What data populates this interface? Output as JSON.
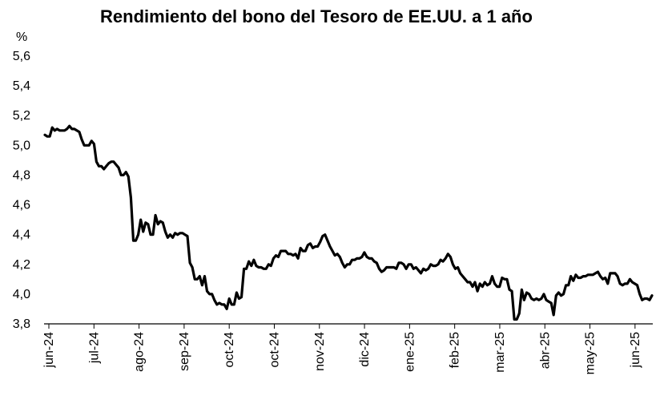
{
  "chart_data": {
    "type": "line",
    "title": "Rendimiento del bono del Tesoro de EE.UU. a 1 año",
    "y_unit_label": "%",
    "xlabel": "",
    "ylabel": "%",
    "ylim": [
      3.8,
      5.6
    ],
    "y_ticks": [
      3.8,
      4.0,
      4.2,
      4.4,
      4.6,
      4.8,
      5.0,
      5.2,
      5.4,
      5.6
    ],
    "y_tick_labels": [
      "3,8",
      "4,0",
      "4,2",
      "4,4",
      "4,6",
      "4,8",
      "5,0",
      "5,2",
      "5,4",
      "5,6"
    ],
    "x_tick_labels": [
      "jun-24",
      "jul-24",
      "ago-24",
      "sep-24",
      "oct-24",
      "oct-24",
      "nov-24",
      "dic-24",
      "ene-25",
      "feb-25",
      "mar-25",
      "abr-25",
      "may-25",
      "jun-25"
    ],
    "grid": false,
    "legend": "none",
    "line_color": "#000000",
    "series": [
      {
        "values": [
          5.07,
          5.06,
          5.06,
          5.12,
          5.1,
          5.11,
          5.1,
          5.1,
          5.1,
          5.11,
          5.13,
          5.11,
          5.11,
          5.1,
          5.09,
          5.04,
          5.0,
          5.0,
          5.0,
          5.03,
          5.01,
          4.89,
          4.86,
          4.86,
          4.84,
          4.86,
          4.88,
          4.89,
          4.89,
          4.87,
          4.85,
          4.8,
          4.8,
          4.82,
          4.79,
          4.65,
          4.36,
          4.36,
          4.4,
          4.5,
          4.42,
          4.48,
          4.47,
          4.4,
          4.4,
          4.53,
          4.47,
          4.49,
          4.48,
          4.42,
          4.38,
          4.4,
          4.38,
          4.41,
          4.4,
          4.41,
          4.41,
          4.4,
          4.39,
          4.21,
          4.18,
          4.1,
          4.1,
          4.12,
          4.06,
          4.12,
          4.02,
          4.0,
          4.0,
          3.96,
          3.93,
          3.94,
          3.93,
          3.93,
          3.9,
          3.97,
          3.93,
          3.93,
          4.01,
          3.97,
          3.98,
          4.17,
          4.17,
          4.22,
          4.19,
          4.23,
          4.19,
          4.18,
          4.18,
          4.17,
          4.17,
          4.2,
          4.19,
          4.24,
          4.26,
          4.25,
          4.29,
          4.29,
          4.29,
          4.27,
          4.27,
          4.26,
          4.27,
          4.24,
          4.31,
          4.29,
          4.29,
          4.33,
          4.34,
          4.31,
          4.32,
          4.32,
          4.35,
          4.39,
          4.4,
          4.36,
          4.32,
          4.29,
          4.26,
          4.27,
          4.25,
          4.21,
          4.18,
          4.2,
          4.2,
          4.23,
          4.23,
          4.24,
          4.24,
          4.25,
          4.28,
          4.25,
          4.24,
          4.24,
          4.22,
          4.21,
          4.17,
          4.15,
          4.16,
          4.18,
          4.18,
          4.18,
          4.18,
          4.17,
          4.21,
          4.21,
          4.2,
          4.17,
          4.2,
          4.2,
          4.17,
          4.18,
          4.16,
          4.14,
          4.17,
          4.16,
          4.17,
          4.2,
          4.19,
          4.19,
          4.2,
          4.23,
          4.22,
          4.24,
          4.27,
          4.25,
          4.2,
          4.17,
          4.18,
          4.14,
          4.12,
          4.1,
          4.08,
          4.08,
          4.05,
          4.08,
          4.02,
          4.07,
          4.05,
          4.08,
          4.06,
          4.07,
          4.12,
          4.07,
          4.05,
          4.05,
          4.11,
          4.1,
          4.1,
          4.03,
          4.02,
          3.83,
          3.83,
          3.87,
          4.03,
          3.96,
          4.01,
          4.0,
          3.97,
          3.96,
          3.97,
          3.96,
          3.97,
          4.0,
          3.96,
          3.95,
          3.94,
          3.86,
          3.99,
          4.01,
          3.99,
          4.0,
          4.06,
          4.06,
          4.12,
          4.09,
          4.13,
          4.11,
          4.11,
          4.12,
          4.12,
          4.13,
          4.13,
          4.13,
          4.14,
          4.15,
          4.12,
          4.1,
          4.11,
          4.07,
          4.14,
          4.14,
          4.14,
          4.12,
          4.07,
          4.06,
          4.07,
          4.07,
          4.1,
          4.08,
          4.07,
          4.06,
          4.0,
          3.96,
          3.97,
          3.97,
          3.96,
          3.99
        ]
      }
    ]
  }
}
